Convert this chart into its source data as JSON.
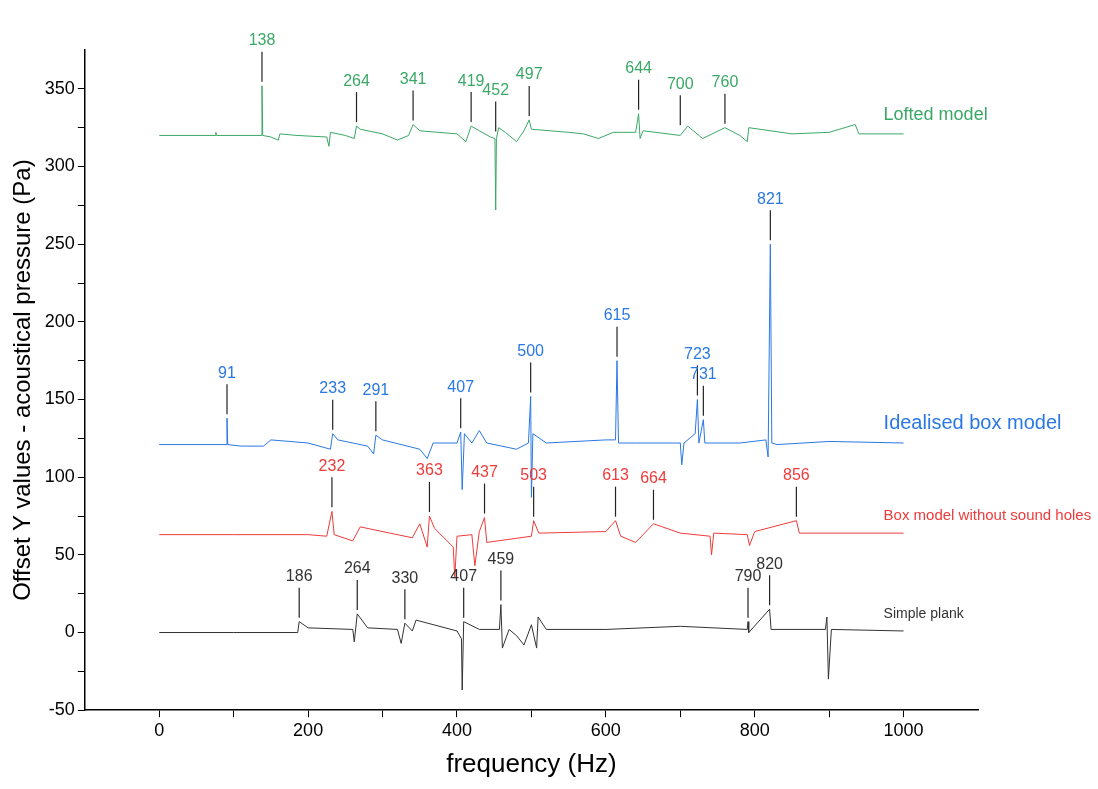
{
  "chart_data": {
    "type": "line",
    "xlabel": "frequency (Hz)",
    "ylabel": "Offset Y values - acoustical pressure (Pa)",
    "xlim": [
      -100,
      1100
    ],
    "xticks": [
      0,
      {
        "value": 100,
        "label": null
      },
      200,
      {
        "value": 300,
        "label": null
      },
      400,
      {
        "value": 500,
        "label": null
      },
      600,
      {
        "value": 700,
        "label": null
      },
      800,
      {
        "value": 900,
        "label": null
      },
      1000
    ],
    "ylim": [
      -50,
      375
    ],
    "yticks": [
      -50,
      {
        "value": -25,
        "label": null
      },
      0,
      {
        "value": 25,
        "label": null
      },
      50,
      {
        "value": 75,
        "label": null
      },
      100,
      {
        "value": 125,
        "label": null
      },
      150,
      {
        "value": 175,
        "label": null
      },
      200,
      {
        "value": 225,
        "label": null
      },
      250,
      {
        "value": 275,
        "label": null
      },
      300,
      {
        "value": 325,
        "label": null
      },
      350
    ],
    "grid": false,
    "legend": false,
    "marker": "none",
    "line_style": "solid",
    "series": [
      {
        "name": "Lofted model",
        "color": "#3aa866",
        "x": [
          0,
          75,
          76,
          77,
          137,
          138,
          139,
          150,
          160,
          162,
          185,
          225,
          228,
          230,
          250,
          262,
          265,
          270,
          300,
          320,
          335,
          341,
          350,
          400,
          412,
          419,
          430,
          445,
          451,
          452,
          453,
          456,
          465,
          480,
          490,
          497,
          500,
          550,
          570,
          590,
          610,
          640,
          644,
          646,
          650,
          700,
          710,
          730,
          760,
          780,
          790,
          792,
          850,
          900,
          935,
          940,
          1000
        ],
        "values": [
          320,
          320,
          322,
          320,
          320,
          352,
          320,
          319,
          317,
          321,
          320,
          319,
          313,
          322,
          320,
          318,
          326,
          324,
          321,
          317,
          320,
          327,
          323,
          321,
          316,
          326,
          323,
          319,
          318,
          272,
          318,
          325,
          322,
          316,
          323,
          330,
          324,
          322,
          321,
          318,
          322,
          322,
          334,
          318,
          323,
          320,
          326,
          318,
          325,
          320,
          316,
          325,
          321,
          322,
          327,
          321,
          321
        ]
      },
      {
        "name": "Idealised box model",
        "color": "#2a78e4",
        "x": [
          0,
          90,
          91,
          92,
          110,
          140,
          150,
          200,
          230,
          233,
          240,
          280,
          288,
          291,
          300,
          350,
          360,
          368,
          400,
          405,
          407,
          410,
          420,
          430,
          440,
          480,
          496,
          499,
          500,
          502,
          520,
          600,
          613,
          615,
          617,
          640,
          700,
          702,
          705,
          720,
          723,
          725,
          731,
          733,
          780,
          815,
          818,
          821,
          823,
          830,
          900,
          1000
        ],
        "values": [
          121,
          121,
          138,
          121,
          120,
          120,
          124,
          122,
          118,
          128,
          124,
          120,
          115,
          127,
          124,
          118,
          112,
          122,
          122,
          129,
          92,
          128,
          122,
          130,
          122,
          118,
          122,
          152,
          87,
          128,
          122,
          124,
          124,
          175,
          122,
          122,
          122,
          108,
          122,
          128,
          150,
          122,
          137,
          122,
          122,
          124,
          113,
          250,
          122,
          121,
          123,
          122
        ]
      },
      {
        "name": "Box model without sound holes",
        "color": "#ee3b3b",
        "x": [
          0,
          100,
          200,
          225,
          232,
          235,
          260,
          270,
          340,
          350,
          360,
          363,
          370,
          395,
          397,
          400,
          420,
          424,
          430,
          437,
          440,
          500,
          503,
          510,
          600,
          613,
          620,
          640,
          664,
          700,
          740,
          742,
          745,
          790,
          793,
          800,
          856,
          860,
          1000
        ],
        "values": [
          63,
          63,
          63,
          62,
          78,
          63,
          59,
          68,
          61,
          70,
          55,
          75,
          67,
          55,
          35,
          62,
          63,
          43,
          65,
          74,
          58,
          62,
          72,
          64,
          65,
          72,
          62,
          58,
          70,
          64,
          62,
          50,
          64,
          63,
          56,
          65,
          72,
          64,
          64
        ]
      },
      {
        "name": "Simple plank",
        "color": "#333333",
        "x": [
          0,
          100,
          186,
          188,
          200,
          260,
          262,
          266,
          280,
          320,
          325,
          330,
          340,
          345,
          400,
          406,
          407,
          409,
          430,
          457,
          459,
          461,
          470,
          480,
          490,
          500,
          507,
          509,
          520,
          600,
          700,
          790,
          791,
          792,
          820,
          822,
          895,
          897,
          899,
          903,
          1000
        ],
        "values": [
          0,
          0,
          0,
          7,
          3,
          2,
          -6,
          12,
          3,
          2,
          -7,
          6,
          1,
          8,
          1,
          -4,
          -37,
          7,
          2,
          2,
          18,
          -10,
          2,
          -2,
          -8,
          5,
          -10,
          10,
          2,
          2,
          4,
          2,
          7,
          0,
          15,
          2,
          2,
          10,
          -30,
          2,
          1
        ]
      }
    ],
    "annotations": [
      {
        "text": "138",
        "x": 138,
        "y": 352
      },
      {
        "text": "264",
        "x": 265,
        "y": 326
      },
      {
        "text": "341",
        "x": 341,
        "y": 327
      },
      {
        "text": "419",
        "x": 419,
        "y": 326
      },
      {
        "text": "452",
        "x": 452,
        "y": 320
      },
      {
        "text": "497",
        "x": 497,
        "y": 330
      },
      {
        "text": "644",
        "x": 644,
        "y": 334
      },
      {
        "text": "700",
        "x": 700,
        "y": 324
      },
      {
        "text": "760",
        "x": 760,
        "y": 325
      },
      {
        "text": "91",
        "x": 91,
        "y": 138
      },
      {
        "text": "233",
        "x": 233,
        "y": 128
      },
      {
        "text": "291",
        "x": 291,
        "y": 127
      },
      {
        "text": "407",
        "x": 405,
        "y": 129
      },
      {
        "text": "500",
        "x": 499,
        "y": 152
      },
      {
        "text": "615",
        "x": 615,
        "y": 175
      },
      {
        "text": "723",
        "x": 723,
        "y": 150
      },
      {
        "text": "731",
        "x": 731,
        "y": 137
      },
      {
        "text": "821",
        "x": 821,
        "y": 250
      },
      {
        "text": "232",
        "x": 232,
        "y": 78
      },
      {
        "text": "363",
        "x": 363,
        "y": 75
      },
      {
        "text": "437",
        "x": 437,
        "y": 74
      },
      {
        "text": "503",
        "x": 503,
        "y": 72
      },
      {
        "text": "613",
        "x": 613,
        "y": 72
      },
      {
        "text": "664",
        "x": 664,
        "y": 70
      },
      {
        "text": "856",
        "x": 856,
        "y": 72
      },
      {
        "text": "186",
        "x": 188,
        "y": 7
      },
      {
        "text": "264",
        "x": 266,
        "y": 12
      },
      {
        "text": "330",
        "x": 330,
        "y": 6
      },
      {
        "text": "407",
        "x": 409,
        "y": 7
      },
      {
        "text": "459",
        "x": 459,
        "y": 18
      },
      {
        "text": "790",
        "x": 791,
        "y": 7
      },
      {
        "text": "820",
        "x": 820,
        "y": 15
      }
    ]
  }
}
